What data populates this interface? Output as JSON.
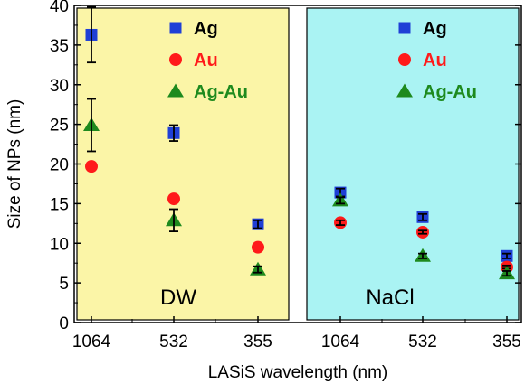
{
  "chart_data": {
    "type": "scatter",
    "xlabel": "LASiS wavelength (nm)",
    "ylabel": "Size of NPs (nm)",
    "ylim": [
      0,
      40
    ],
    "yticks": [
      "0",
      "5",
      "10",
      "15",
      "20",
      "25",
      "30",
      "35",
      "40"
    ],
    "categories": [
      "1064",
      "532",
      "355",
      "1064",
      "532",
      "355"
    ],
    "grid": false,
    "panels": [
      {
        "label": "DW",
        "background": "#fbf5a7",
        "legend_position": "top-right",
        "series": [
          {
            "name": "Ag",
            "marker": "square",
            "color": "#1f3fd6",
            "values": [
              36.3,
              23.9,
              12.4
            ],
            "errors": [
              3.5,
              1.0,
              0.5
            ]
          },
          {
            "name": "Au",
            "marker": "circle",
            "color": "#ff1a1a",
            "values": [
              19.7,
              15.6,
              9.5
            ],
            "errors": [
              0,
              0,
              0
            ]
          },
          {
            "name": "Ag-Au",
            "marker": "triangle",
            "color": "#1e8a1e",
            "values": [
              24.9,
              12.9,
              6.7
            ],
            "errors": [
              3.3,
              1.4,
              0.4
            ]
          }
        ]
      },
      {
        "label": "NaCl",
        "background": "#aaf3f3",
        "legend_position": "top-right",
        "series": [
          {
            "name": "Ag",
            "marker": "square",
            "color": "#1f3fd6",
            "values": [
              16.4,
              13.3,
              8.4
            ],
            "errors": [
              0.5,
              0.4,
              0.3
            ]
          },
          {
            "name": "Au",
            "marker": "circle",
            "color": "#ff1a1a",
            "values": [
              12.6,
              11.4,
              7.0
            ],
            "errors": [
              0.3,
              0.2,
              0.2
            ]
          },
          {
            "name": "Ag-Au",
            "marker": "triangle",
            "color": "#1e8a1e",
            "values": [
              15.4,
              8.4,
              6.2
            ],
            "errors": [
              0.4,
              0.3,
              0.3
            ]
          }
        ]
      }
    ]
  }
}
